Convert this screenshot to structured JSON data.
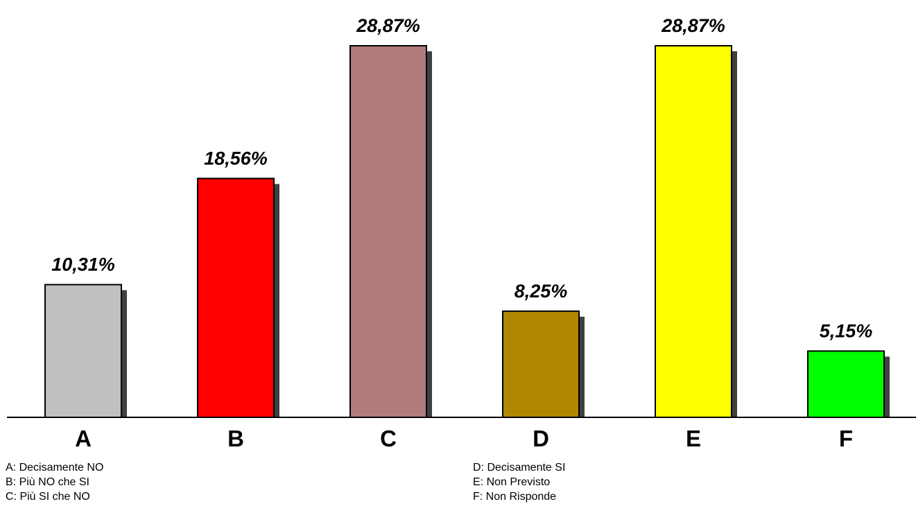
{
  "chart_data": {
    "type": "bar",
    "title": "",
    "xlabel": "",
    "ylabel": "",
    "categories": [
      "A",
      "B",
      "C",
      "D",
      "E",
      "F"
    ],
    "values": [
      10.31,
      18.56,
      28.87,
      8.25,
      28.87,
      5.15
    ],
    "value_labels": [
      "10,31%",
      "18,56%",
      "28,87%",
      "8,25%",
      "28,87%",
      "5,15%"
    ],
    "colors": [
      "#c0c0c0",
      "#ff0000",
      "#b17b7b",
      "#b08800",
      "#ffff00",
      "#00ff00"
    ],
    "ylim": [
      0,
      28.87
    ],
    "grid": false,
    "legend": [
      {
        "key": "A",
        "text": "A: Decisamente NO"
      },
      {
        "key": "B",
        "text": "B: Più NO che SI"
      },
      {
        "key": "C",
        "text": "C: Più SI che NO"
      },
      {
        "key": "D",
        "text": "D: Decisamente SI"
      },
      {
        "key": "E",
        "text": "E: Non Previsto"
      },
      {
        "key": "F",
        "text": "F: Non Risponde"
      }
    ]
  }
}
